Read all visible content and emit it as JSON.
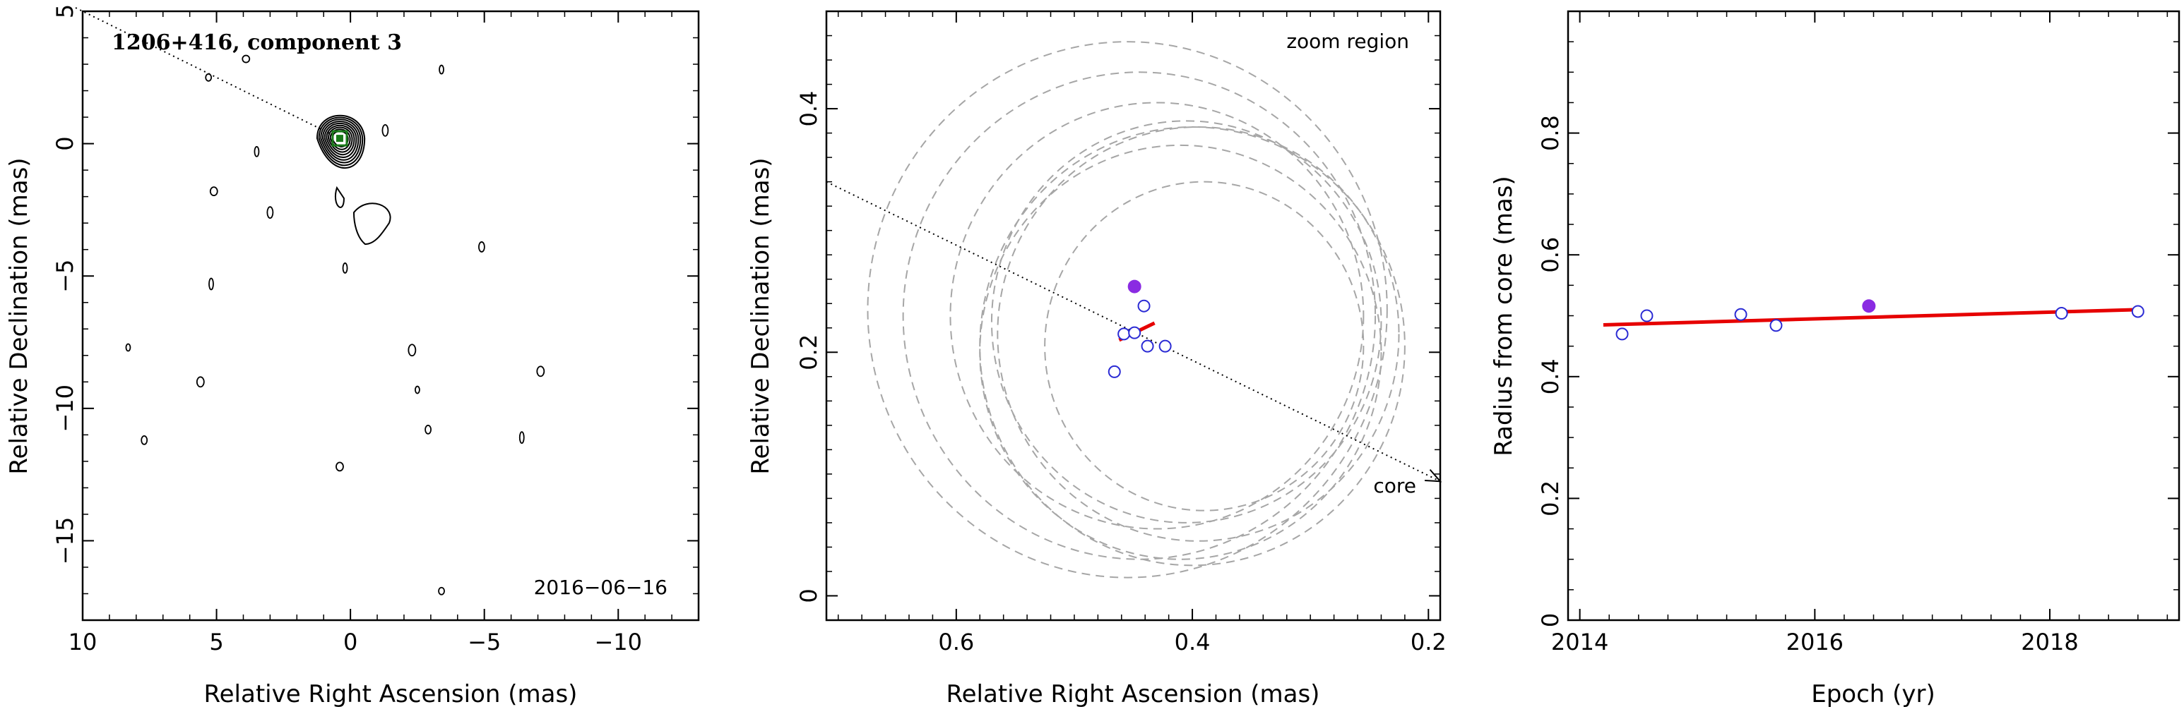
{
  "chart_data": [
    {
      "type": "contour",
      "title": "1206+416, component 3",
      "xlabel": "Relative Right Ascension (mas)",
      "ylabel": "Relative Declination (mas)",
      "xlim": [
        10,
        -13
      ],
      "ylim": [
        -18,
        5
      ],
      "xticks": [
        10,
        5,
        0,
        -5,
        -10
      ],
      "yticks": [
        5,
        0,
        -5,
        -10,
        -15
      ],
      "xtick_labels": [
        "10",
        "5",
        "0",
        "−5",
        "−10"
      ],
      "ytick_labels": [
        "5",
        "0",
        "−5",
        "−10",
        "−15"
      ],
      "date_label": "2016−06−16",
      "core_position": [
        0.4,
        0.2
      ],
      "core_marker_color": "#1a7a1a",
      "jet_direction_line": [
        [
          10,
          5
        ],
        [
          0,
          0
        ]
      ],
      "main_contour_levels": 9,
      "noise_islands": [
        [
          8.3,
          -7.7
        ],
        [
          7.7,
          -11.2
        ],
        [
          5.6,
          -9
        ],
        [
          5.2,
          -5.3
        ],
        [
          5.3,
          2.5
        ],
        [
          5.1,
          -1.8
        ],
        [
          3.5,
          -0.3
        ],
        [
          3.0,
          -2.6
        ],
        [
          3.9,
          3.2
        ],
        [
          -3.4,
          2.8
        ],
        [
          -4.9,
          -3.9
        ],
        [
          -2.3,
          -7.8
        ],
        [
          -2.5,
          -9.3
        ],
        [
          -2.9,
          -10.8
        ],
        [
          -7.1,
          -8.6
        ],
        [
          -6.4,
          -11.1
        ],
        [
          -3.4,
          -16.9
        ],
        [
          0.4,
          -12.2
        ],
        [
          0.2,
          -4.7
        ],
        [
          -1.3,
          0.5
        ]
      ]
    },
    {
      "type": "scatter",
      "xlabel": "Relative Right Ascension (mas)",
      "ylabel": "Relative Declination (mas)",
      "xlim": [
        0.71,
        0.19
      ],
      "ylim": [
        -0.02,
        0.48
      ],
      "xticks": [
        0.6,
        0.4,
        0.2
      ],
      "yticks": [
        0,
        0.2,
        0.4
      ],
      "xtick_labels": [
        "0.6",
        "0.4",
        "0.2"
      ],
      "ytick_labels": [
        "0",
        "0.2",
        "0.4"
      ],
      "annotation_top": "zoom region",
      "annotation_core": "core",
      "open_points": [
        [
          0.466,
          0.184
        ],
        [
          0.458,
          0.215
        ],
        [
          0.449,
          0.216
        ],
        [
          0.441,
          0.238
        ],
        [
          0.438,
          0.205
        ],
        [
          0.423,
          0.205
        ]
      ],
      "filled_point": [
        0.449,
        0.254
      ],
      "fit_segment": [
        [
          0.462,
          0.21
        ],
        [
          0.432,
          0.224
        ]
      ],
      "direction_line": [
        [
          0.71,
          0.34
        ],
        [
          0.19,
          0.094
        ]
      ],
      "circles": [
        {
          "cx": 0.455,
          "cy": 0.235,
          "r": 0.22
        },
        {
          "cx": 0.445,
          "cy": 0.23,
          "r": 0.2
        },
        {
          "cx": 0.43,
          "cy": 0.23,
          "r": 0.175
        },
        {
          "cx": 0.405,
          "cy": 0.225,
          "r": 0.165
        },
        {
          "cx": 0.395,
          "cy": 0.215,
          "r": 0.17
        },
        {
          "cx": 0.4,
          "cy": 0.205,
          "r": 0.18
        },
        {
          "cx": 0.41,
          "cy": 0.2,
          "r": 0.17
        },
        {
          "cx": 0.39,
          "cy": 0.205,
          "r": 0.135
        }
      ],
      "circle_color": "#a6a6a6",
      "point_color": "#2b2bd4",
      "filled_color": "#8a2be2",
      "fit_color": "#e60000"
    },
    {
      "type": "scatter",
      "xlabel": "Epoch (yr)",
      "ylabel": "Radius from core (mas)",
      "xlim": [
        2013.9,
        2019.1
      ],
      "ylim": [
        0,
        1.0
      ],
      "xticks": [
        2014,
        2016,
        2018
      ],
      "yticks": [
        0,
        0.2,
        0.4,
        0.6,
        0.8
      ],
      "xtick_labels": [
        "2014",
        "2016",
        "2018"
      ],
      "ytick_labels": [
        "0",
        "0.2",
        "0.4",
        "0.6",
        "0.8"
      ],
      "open_points": [
        [
          2014.36,
          0.47
        ],
        [
          2014.57,
          0.5
        ],
        [
          2015.37,
          0.502
        ],
        [
          2015.67,
          0.484
        ],
        [
          2018.1,
          0.504
        ],
        [
          2018.75,
          0.507
        ]
      ],
      "filled_point": [
        2016.46,
        0.516
      ],
      "fit_line": [
        [
          2014.2,
          0.485
        ],
        [
          2018.75,
          0.51
        ]
      ],
      "point_color": "#2b2bd4",
      "filled_color": "#8a2be2",
      "fit_color": "#e60000"
    }
  ]
}
